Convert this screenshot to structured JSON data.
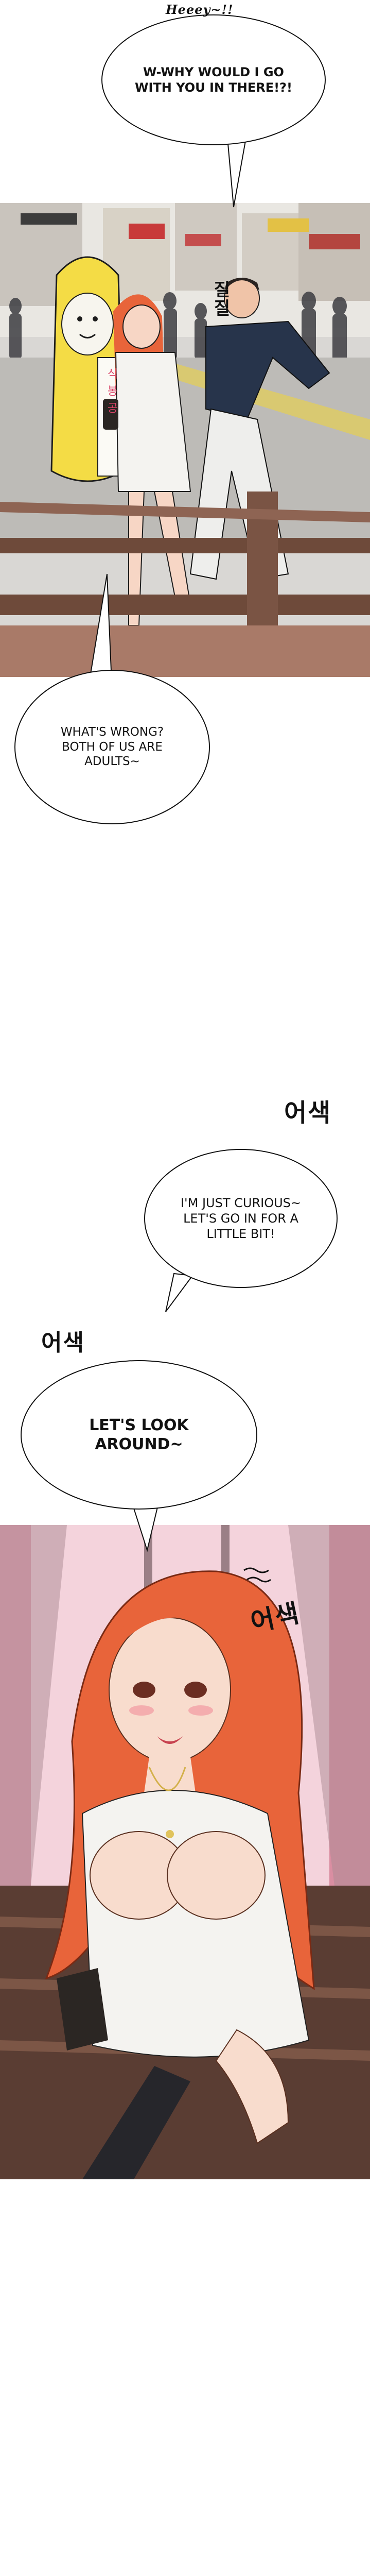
{
  "colors": {
    "page_background": "#ffffff",
    "ink": "#111111",
    "hair_red": "#e8643a",
    "dress_white": "#f4f3f0",
    "rail_brown": "#6e4a3a",
    "street_gray": "#b9b9b9",
    "mascot_yellow": "#f4dc45",
    "shirt_navy": "#27344b",
    "pink_bg": "#f3c9d4"
  },
  "bubbles": {
    "b1": {
      "sfx": "Heeey~!!",
      "lines": [
        "W-WHY WOULD I GO",
        "WITH YOU IN THERE!?!"
      ]
    },
    "b2": {
      "lines": [
        "WHAT'S WRONG?",
        "BOTH OF US ARE",
        "ADULTS~"
      ]
    },
    "b3": {
      "lines": [
        "I'M JUST CURIOUS~",
        "LET'S GO IN FOR A",
        "LITTLE BIT!"
      ]
    },
    "b4": {
      "lines": [
        "LET'S LOOK",
        "AROUND~"
      ]
    }
  },
  "sfx": {
    "panel1_tug": "질질",
    "panel1_sign": "식 봉 공",
    "awkward_1": "어색",
    "awkward_2": "어색",
    "awkward_3": "어색"
  },
  "icons": {
    "speech_bubble": "speech-bubble-icon",
    "worry_marks": "worry-marks-icon"
  }
}
